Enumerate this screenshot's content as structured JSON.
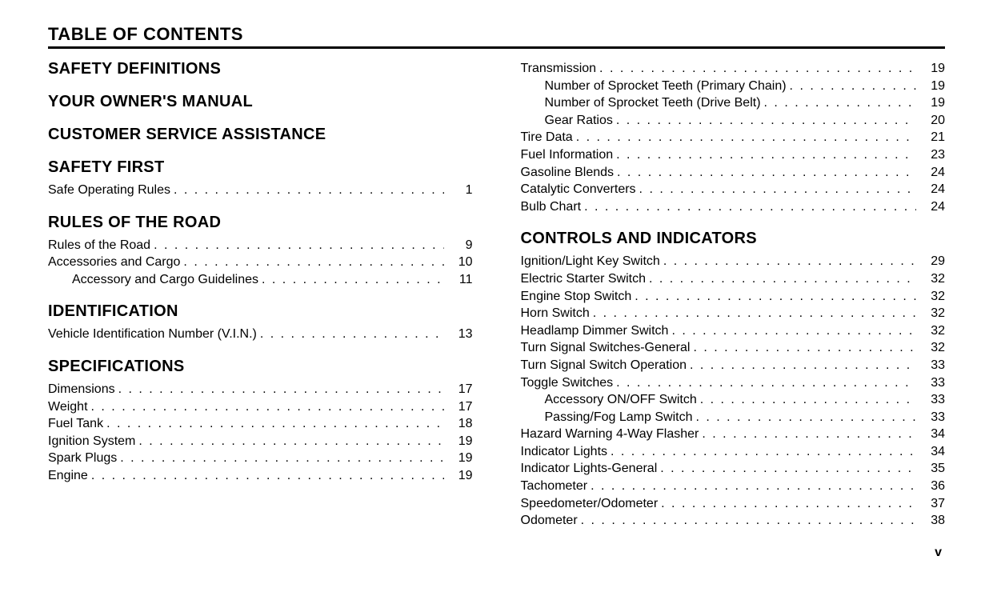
{
  "title": "TABLE OF CONTENTS",
  "page_marker": "v",
  "colors": {
    "text": "#000000",
    "background": "#ffffff",
    "rule": "#000000"
  },
  "typography": {
    "title_fontsize": 22,
    "heading_fontsize": 20,
    "entry_fontsize": 16,
    "font_family": "Helvetica, Arial, sans-serif"
  },
  "left_column": [
    {
      "type": "heading",
      "text": "SAFETY DEFINITIONS"
    },
    {
      "type": "heading",
      "text": "YOUR OWNER'S MANUAL"
    },
    {
      "type": "heading",
      "text": "CUSTOMER SERVICE ASSISTANCE"
    },
    {
      "type": "heading",
      "text": "SAFETY FIRST"
    },
    {
      "type": "entry",
      "label": "Safe Operating Rules",
      "page": "1",
      "indent": 0
    },
    {
      "type": "heading",
      "text": "RULES OF THE ROAD"
    },
    {
      "type": "entry",
      "label": "Rules of the Road",
      "page": "9",
      "indent": 0
    },
    {
      "type": "entry",
      "label": "Accessories and Cargo",
      "page": "10",
      "indent": 0
    },
    {
      "type": "entry",
      "label": "Accessory and Cargo Guidelines",
      "page": "11",
      "indent": 1
    },
    {
      "type": "heading",
      "text": "IDENTIFICATION"
    },
    {
      "type": "entry",
      "label": "Vehicle Identification Number (V.I.N.)",
      "page": "13",
      "indent": 0
    },
    {
      "type": "heading",
      "text": "SPECIFICATIONS"
    },
    {
      "type": "entry",
      "label": "Dimensions",
      "page": "17",
      "indent": 0
    },
    {
      "type": "entry",
      "label": "Weight",
      "page": "17",
      "indent": 0
    },
    {
      "type": "entry",
      "label": "Fuel Tank",
      "page": "18",
      "indent": 0
    },
    {
      "type": "entry",
      "label": "Ignition System",
      "page": "19",
      "indent": 0
    },
    {
      "type": "entry",
      "label": "Spark Plugs",
      "page": "19",
      "indent": 0
    },
    {
      "type": "entry",
      "label": "Engine",
      "page": "19",
      "indent": 0
    }
  ],
  "right_column": [
    {
      "type": "entry",
      "label": "Transmission",
      "page": "19",
      "indent": 0
    },
    {
      "type": "entry",
      "label": "Number of Sprocket Teeth (Primary Chain)",
      "page": "19",
      "indent": 1
    },
    {
      "type": "entry",
      "label": "Number of Sprocket Teeth (Drive Belt)",
      "page": "19",
      "indent": 1
    },
    {
      "type": "entry",
      "label": "Gear Ratios",
      "page": "20",
      "indent": 1
    },
    {
      "type": "entry",
      "label": "Tire Data",
      "page": "21",
      "indent": 0
    },
    {
      "type": "entry",
      "label": "Fuel Information",
      "page": "23",
      "indent": 0
    },
    {
      "type": "entry",
      "label": "Gasoline Blends",
      "page": "24",
      "indent": 0
    },
    {
      "type": "entry",
      "label": "Catalytic Converters",
      "page": "24",
      "indent": 0
    },
    {
      "type": "entry",
      "label": "Bulb Chart",
      "page": "24",
      "indent": 0
    },
    {
      "type": "heading",
      "text": "CONTROLS AND INDICATORS"
    },
    {
      "type": "entry",
      "label": "Ignition/Light Key Switch",
      "page": "29",
      "indent": 0
    },
    {
      "type": "entry",
      "label": "Electric Starter Switch",
      "page": "32",
      "indent": 0
    },
    {
      "type": "entry",
      "label": "Engine Stop Switch",
      "page": "32",
      "indent": 0
    },
    {
      "type": "entry",
      "label": "Horn Switch",
      "page": "32",
      "indent": 0
    },
    {
      "type": "entry",
      "label": "Headlamp Dimmer Switch",
      "page": "32",
      "indent": 0
    },
    {
      "type": "entry",
      "label": "Turn Signal Switches-General",
      "page": "32",
      "indent": 0
    },
    {
      "type": "entry",
      "label": "Turn Signal Switch Operation",
      "page": "33",
      "indent": 0
    },
    {
      "type": "entry",
      "label": "Toggle Switches",
      "page": "33",
      "indent": 0
    },
    {
      "type": "entry",
      "label": "Accessory ON/OFF Switch",
      "page": "33",
      "indent": 1
    },
    {
      "type": "entry",
      "label": "Passing/Fog Lamp Switch",
      "page": "33",
      "indent": 1
    },
    {
      "type": "entry",
      "label": "Hazard Warning 4-Way Flasher",
      "page": "34",
      "indent": 0
    },
    {
      "type": "entry",
      "label": "Indicator Lights",
      "page": "34",
      "indent": 0
    },
    {
      "type": "entry",
      "label": "Indicator Lights-General",
      "page": "35",
      "indent": 0
    },
    {
      "type": "entry",
      "label": "Tachometer",
      "page": "36",
      "indent": 0
    },
    {
      "type": "entry",
      "label": "Speedometer/Odometer",
      "page": "37",
      "indent": 0
    },
    {
      "type": "entry",
      "label": "Odometer",
      "page": "38",
      "indent": 0
    }
  ]
}
